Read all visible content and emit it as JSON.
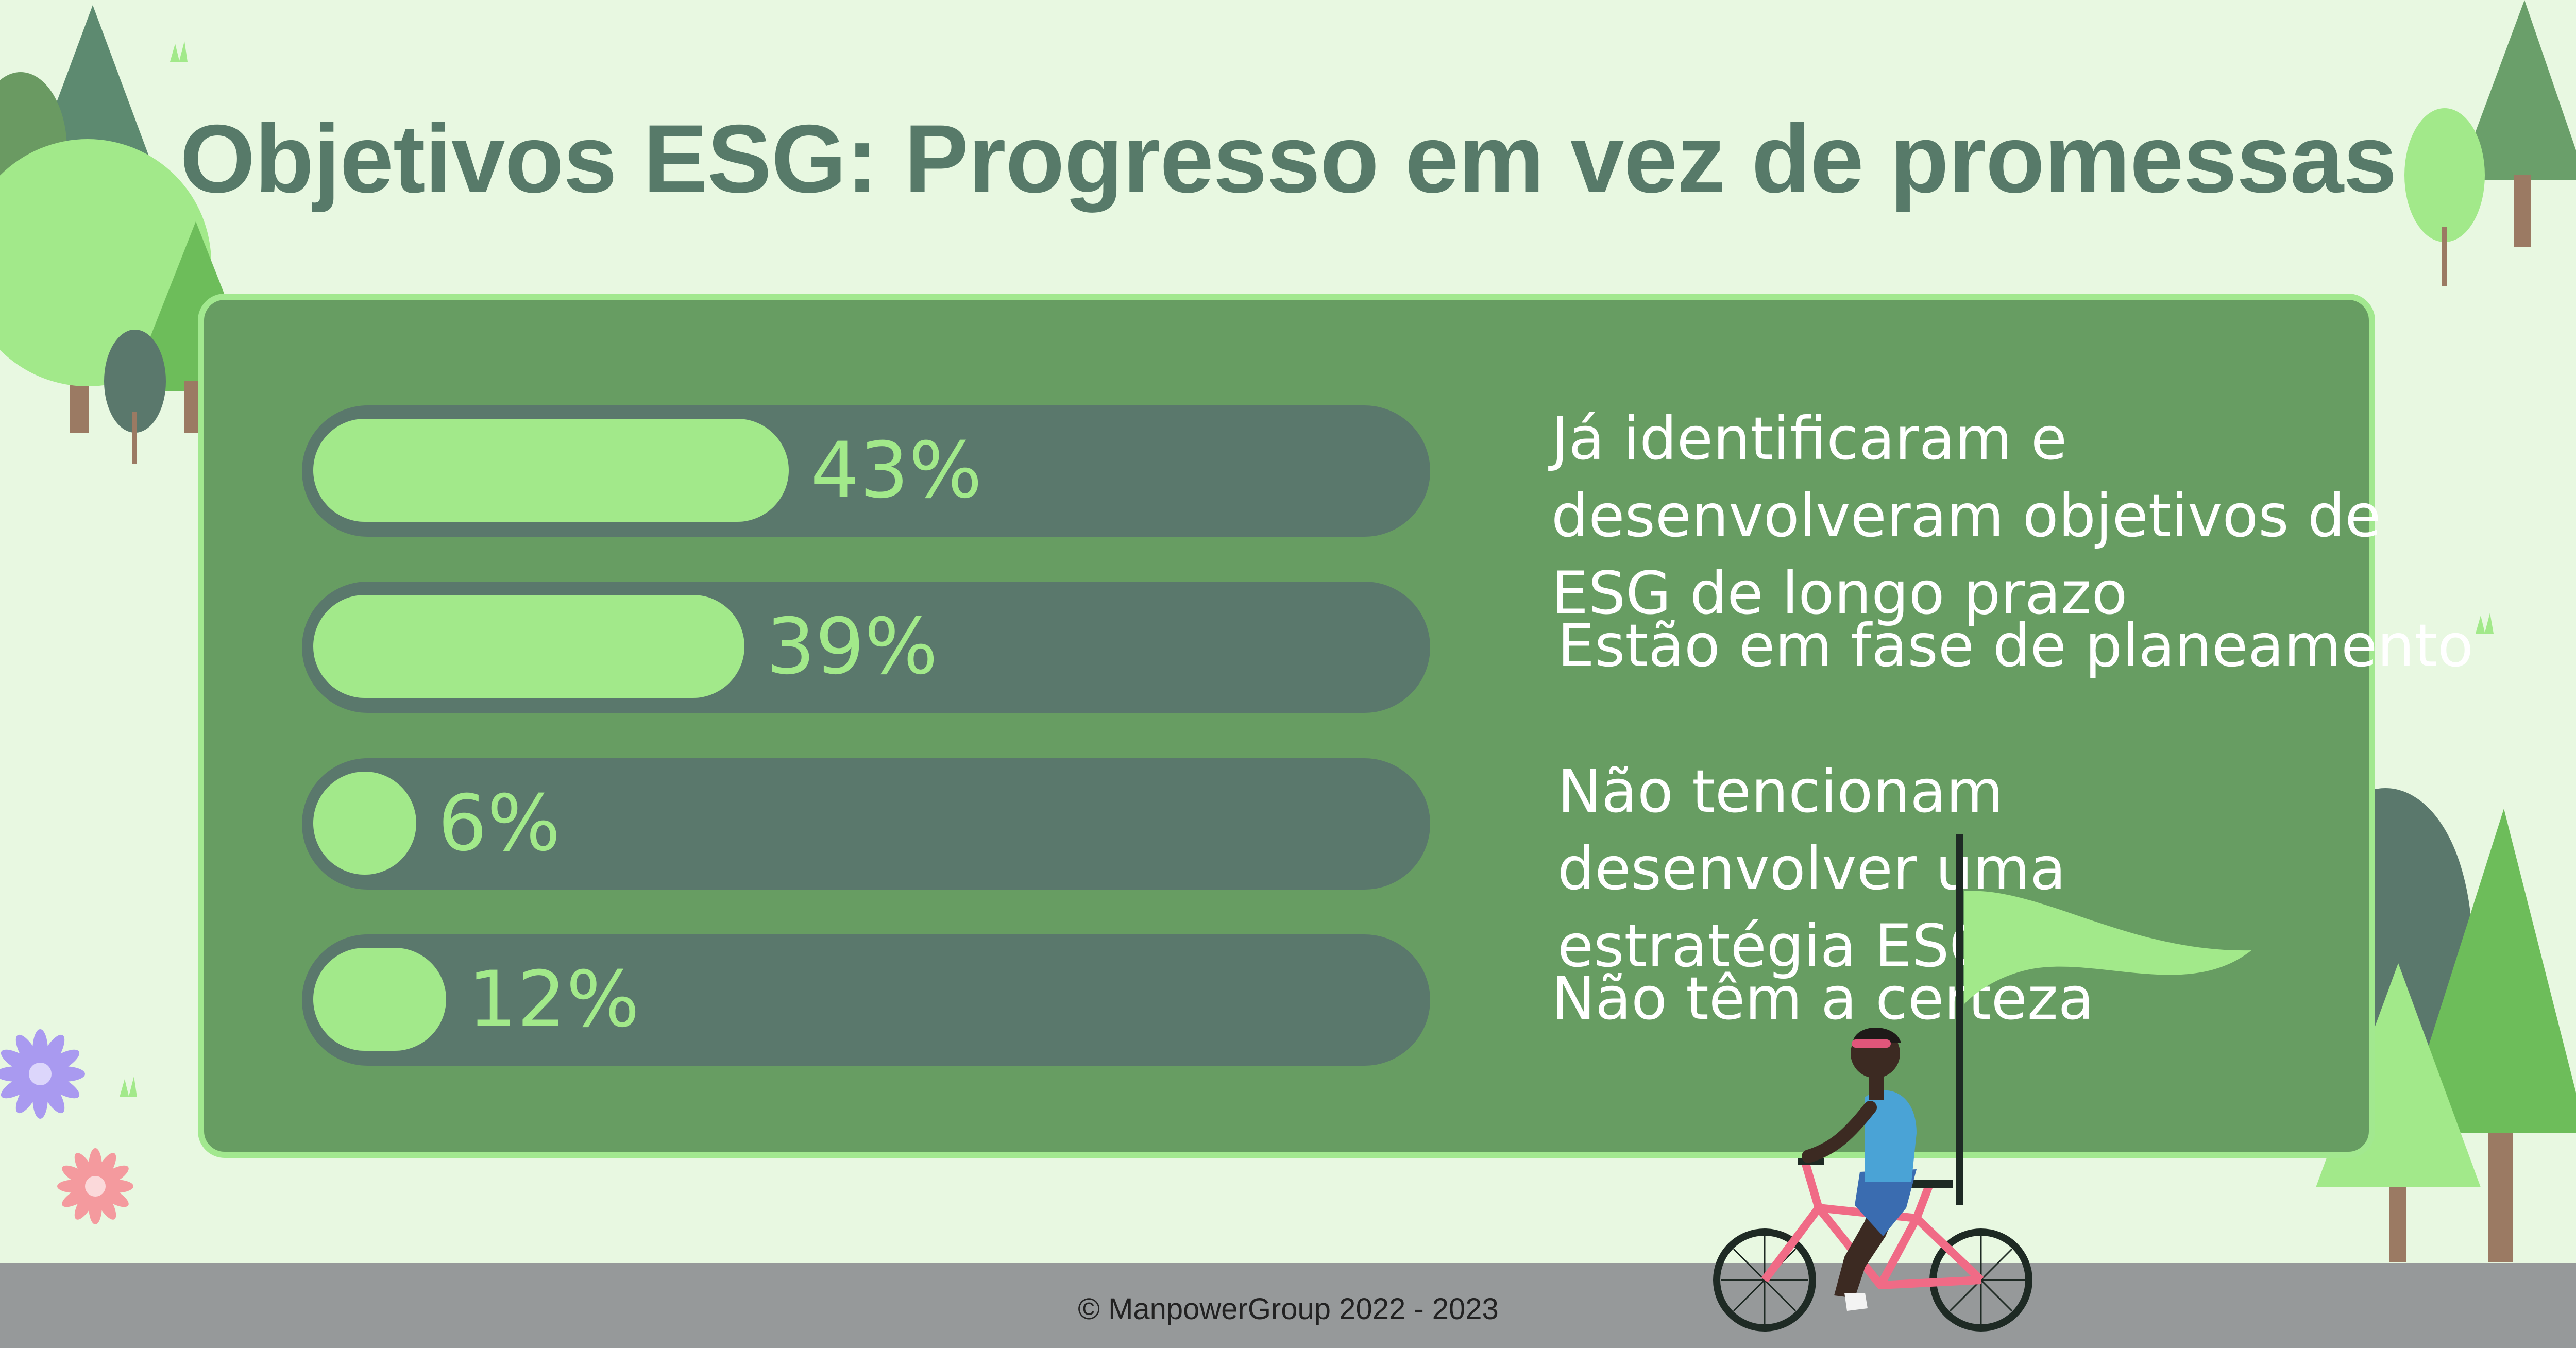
{
  "title": "Objetivos ESG: Progresso em vez de promessas",
  "footer": "© ManpowerGroup 2022 - 2023",
  "colors": {
    "background": "#e8f8e1",
    "panel": "#679d62",
    "panel_border": "#a2e88f",
    "track": "#5a786c",
    "fill": "#a2e98a",
    "title": "#577a69",
    "road": "#96999a"
  },
  "chart_data": {
    "type": "bar",
    "orientation": "horizontal",
    "categories": [
      "Já identificaram e desenvolveram objetivos de ESG de longo prazo",
      "Estão em fase de planeamento",
      "Não tencionam desenvolver uma estratégia ESG",
      "Não têm a certeza"
    ],
    "values": [
      43,
      39,
      6,
      12
    ],
    "value_labels": [
      "43%",
      "39%",
      "6%",
      "12%"
    ],
    "xlim": [
      0,
      100
    ],
    "title": "Objetivos ESG: Progresso em vez de promessas"
  }
}
